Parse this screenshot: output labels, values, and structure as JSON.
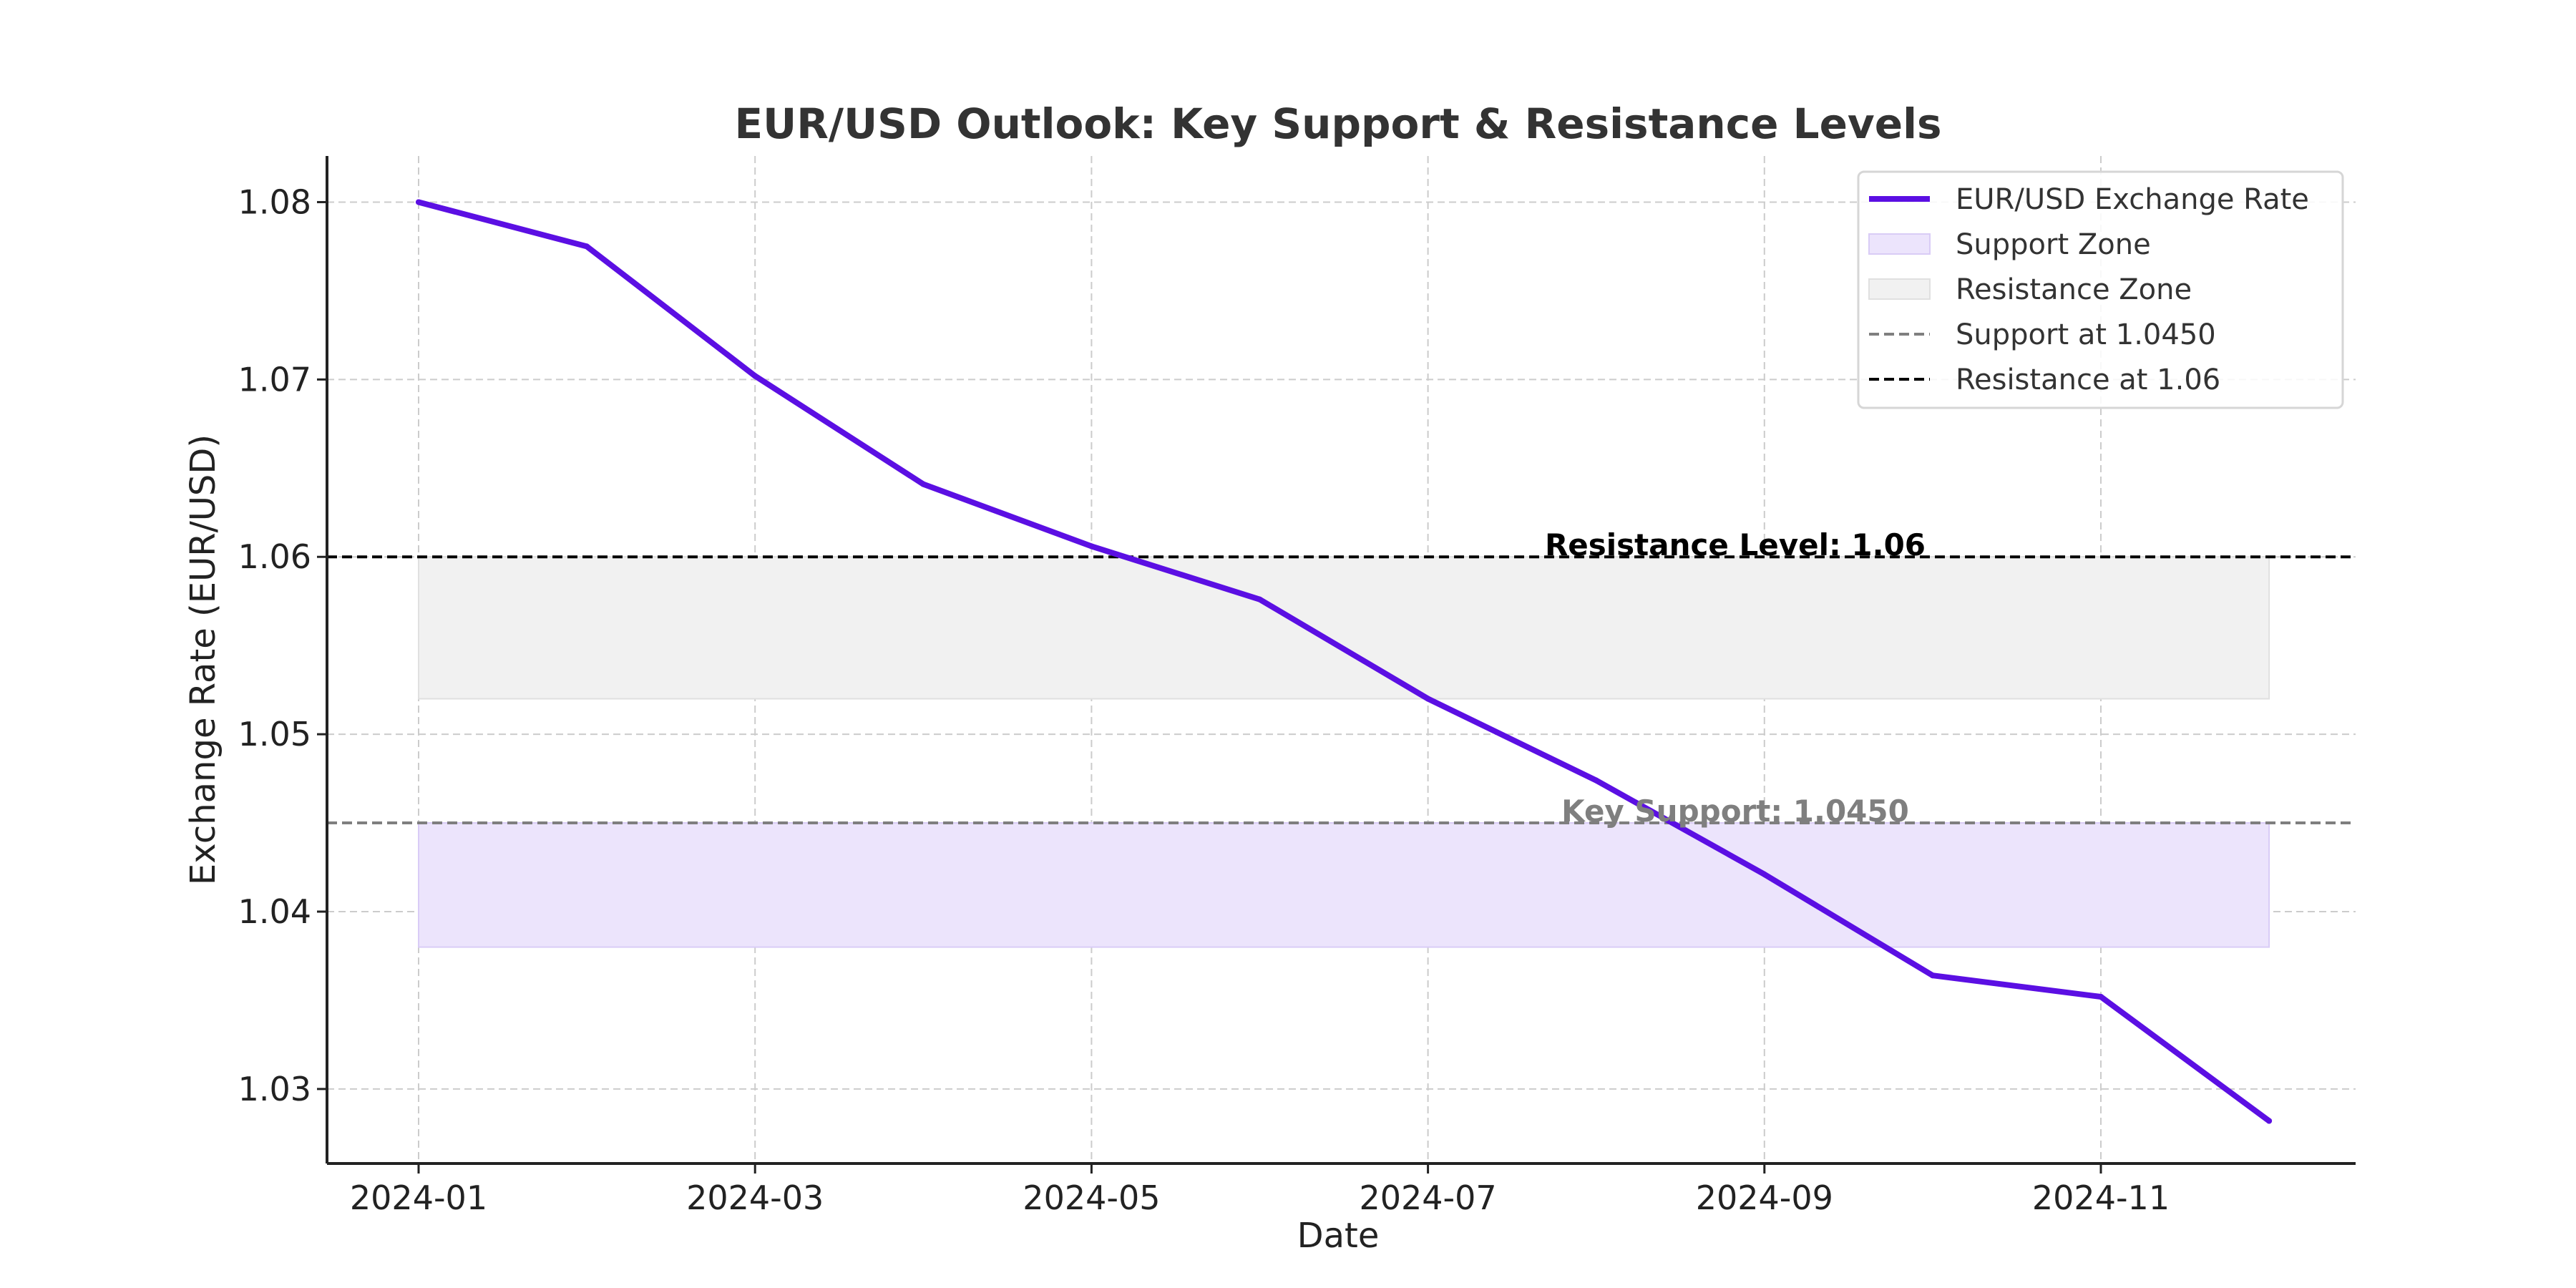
{
  "chart_data": {
    "type": "line",
    "title": "EUR/USD Outlook: Key Support & Resistance Levels",
    "xlabel": "Date",
    "ylabel": "Exchange Rate (EUR/USD)",
    "x": [
      "2024-01",
      "2024-02",
      "2024-03",
      "2024-04",
      "2024-05",
      "2024-06",
      "2024-07",
      "2024-08",
      "2024-09",
      "2024-10",
      "2024-11",
      "2024-12"
    ],
    "xticks": [
      "2024-01",
      "2024-03",
      "2024-05",
      "2024-07",
      "2024-09",
      "2024-11"
    ],
    "yticks": [
      "1.03",
      "1.04",
      "1.05",
      "1.06",
      "1.07",
      "1.08"
    ],
    "ylim": [
      1.0258,
      1.0826
    ],
    "grid": true,
    "legend_position": "top-right",
    "series": [
      {
        "name": "EUR/USD Exchange Rate",
        "color": "#5b0fe3",
        "values": [
          1.08,
          1.0775,
          1.0702,
          1.0641,
          1.0606,
          1.0576,
          1.052,
          1.0474,
          1.0421,
          1.0364,
          1.0352,
          1.0282
        ]
      }
    ],
    "zones": [
      {
        "name": "Support Zone",
        "from": 1.038,
        "to": 1.045,
        "color": "#ece4fc",
        "edge": "#d9ccf6"
      },
      {
        "name": "Resistance Zone",
        "from": 1.052,
        "to": 1.06,
        "color": "#f1f1f1",
        "edge": "#e0e0e0"
      }
    ],
    "levels": [
      {
        "name": "Support at 1.0450",
        "value": 1.045,
        "color": "#7f7f7f"
      },
      {
        "name": "Resistance at 1.06",
        "value": 1.06,
        "color": "#000000"
      }
    ],
    "annotations": [
      {
        "text": "Resistance Level: 1.06",
        "y": 1.06,
        "color": "#000000"
      },
      {
        "text": "Key Support: 1.0450",
        "y": 1.045,
        "color": "#7f7f7f"
      }
    ]
  }
}
